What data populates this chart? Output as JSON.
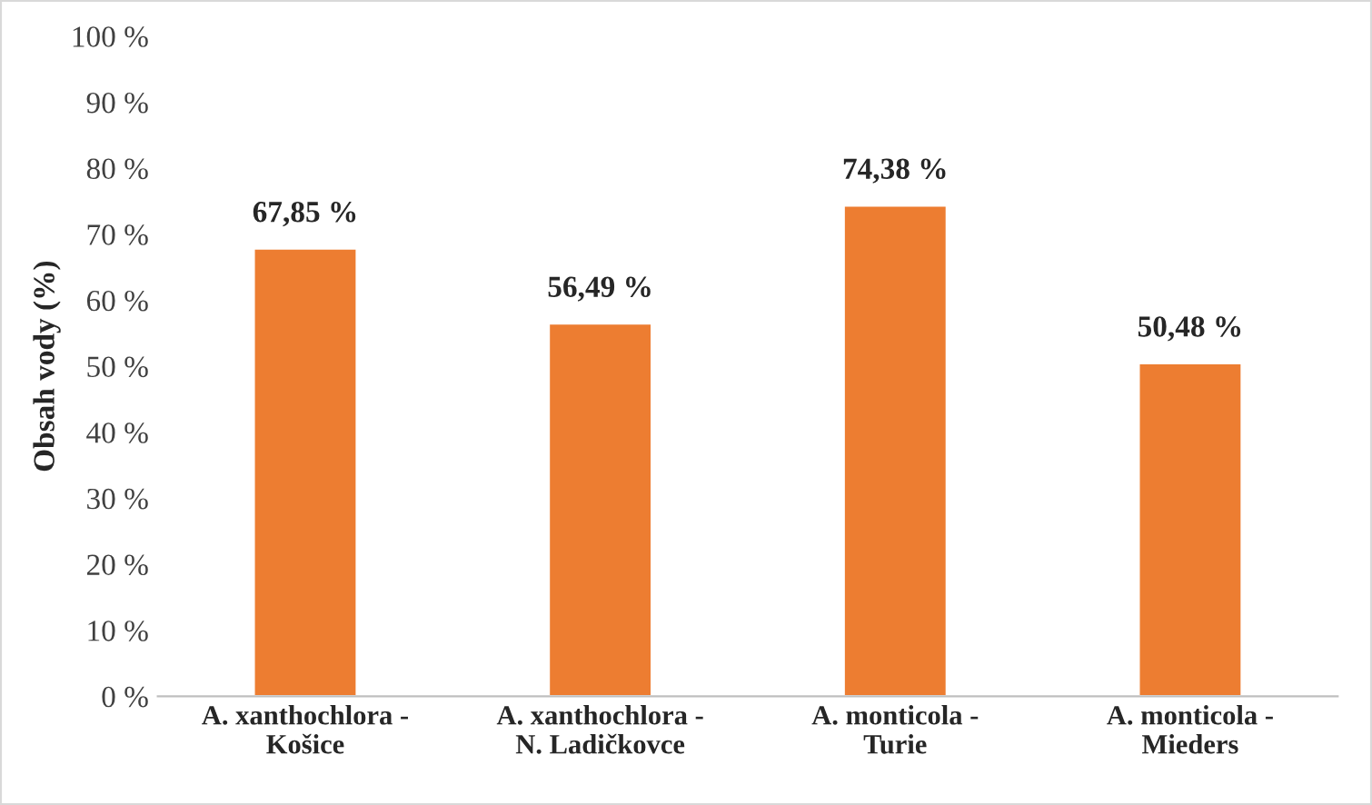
{
  "chart_data": {
    "type": "bar",
    "ylabel": "Obsah vody (%)",
    "categories": [
      "A. xanthochlora -\nKošice",
      "A. xanthochlora -\nN. Ladičkovce",
      "A. monticola -\nTurie",
      "A. monticola -\nMieders"
    ],
    "values": [
      67.85,
      56.49,
      74.38,
      50.48
    ],
    "value_labels": [
      "67,85 %",
      "56,49 %",
      "74,38 %",
      "50,48 %"
    ],
    "color": "#ed7d31",
    "ylim": [
      0,
      100
    ],
    "yticks": [
      {
        "value": 0,
        "label": "0 %"
      },
      {
        "value": 10,
        "label": "10 %"
      },
      {
        "value": 20,
        "label": "20 %"
      },
      {
        "value": 30,
        "label": "30 %"
      },
      {
        "value": 40,
        "label": "40 %"
      },
      {
        "value": 50,
        "label": "50 %"
      },
      {
        "value": 60,
        "label": "60 %"
      },
      {
        "value": 70,
        "label": "70 %"
      },
      {
        "value": 80,
        "label": "80 %"
      },
      {
        "value": 90,
        "label": "90 %"
      },
      {
        "value": 100,
        "label": "100 %"
      }
    ],
    "grid": false,
    "legend": false
  }
}
